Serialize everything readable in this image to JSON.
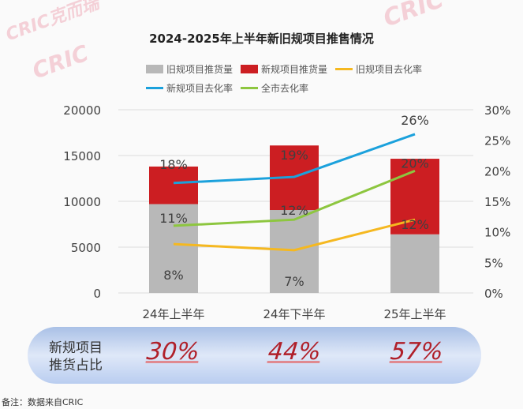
{
  "chart_data": {
    "type": "bar+line",
    "title": "2024-2025年上半年新旧规项目推售情况",
    "categories": [
      "24年上半年",
      "24年下半年",
      "25年上半年"
    ],
    "bar_series": [
      {
        "name": "旧规项目推货量",
        "values": [
          9700,
          9050,
          6400
        ],
        "color": "#b8b8b8"
      },
      {
        "name": "新规项目推货量",
        "values": [
          4100,
          7050,
          8250
        ],
        "color": "#cc1e22"
      }
    ],
    "line_series": [
      {
        "name": "旧规项目去化率",
        "values": [
          8,
          7,
          12
        ],
        "labels": [
          "8%",
          "7%",
          "12%"
        ],
        "color": "#f5b820"
      },
      {
        "name": "新规项目去化率",
        "values": [
          18,
          19,
          26
        ],
        "labels": [
          "18%",
          "19%",
          "26%"
        ],
        "color": "#1ba1dc"
      },
      {
        "name": "全市去化率",
        "values": [
          11,
          12,
          20
        ],
        "labels": [
          "11%",
          "12%",
          "20%"
        ],
        "color": "#8dc63f"
      }
    ],
    "ylim_left": [
      0,
      20000
    ],
    "yticks_left": [
      "0",
      "5000",
      "10000",
      "15000",
      "20000"
    ],
    "ylim_right": [
      0,
      30
    ],
    "yticks_right": [
      "0%",
      "5%",
      "10%",
      "15%",
      "20%",
      "25%",
      "30%"
    ],
    "grid": true,
    "legend_position": "top"
  },
  "summary": {
    "label_line1": "新规项目",
    "label_line2": "推货占比",
    "values": [
      "30%",
      "44%",
      "57%"
    ]
  },
  "note": "备注：数据来自CRIC",
  "watermark": "CRIC克而瑞"
}
